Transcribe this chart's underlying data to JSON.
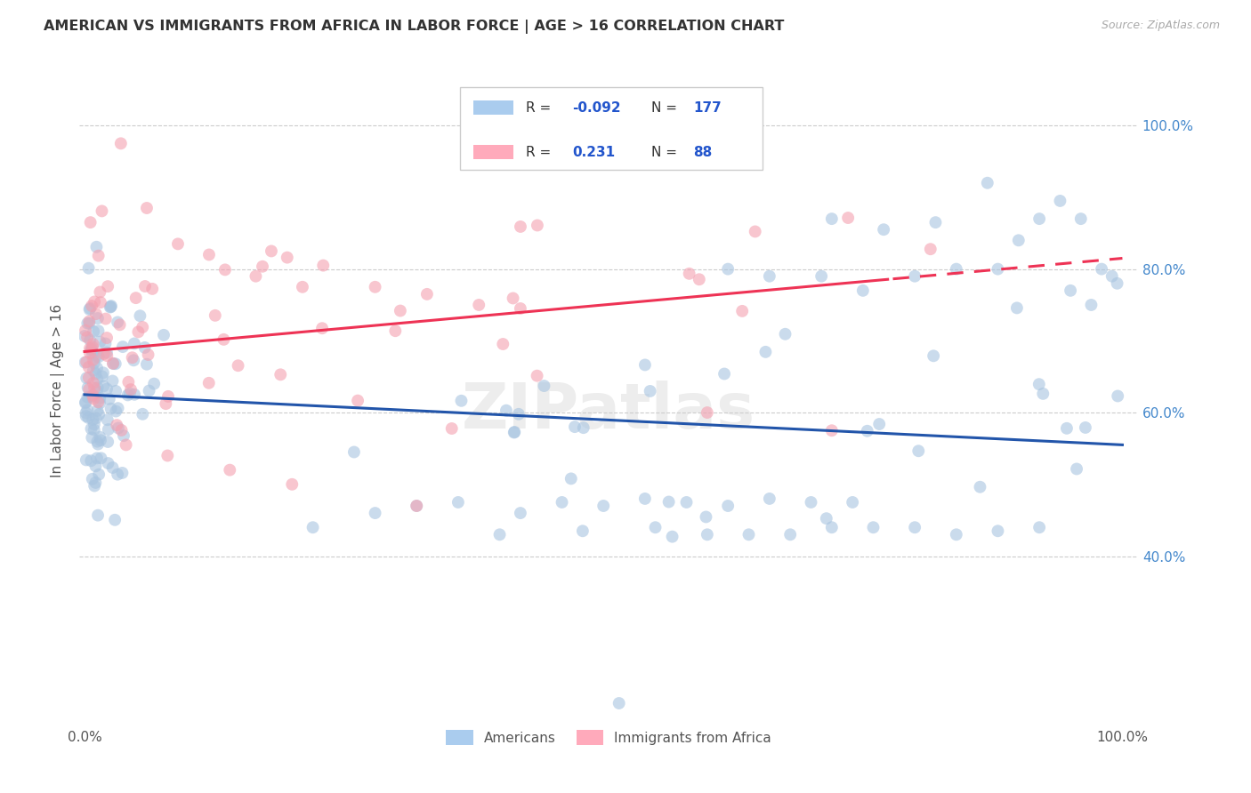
{
  "title": "AMERICAN VS IMMIGRANTS FROM AFRICA IN LABOR FORCE | AGE > 16 CORRELATION CHART",
  "source": "Source: ZipAtlas.com",
  "ylabel": "In Labor Force | Age > 16",
  "legend": {
    "blue_label": "Americans",
    "pink_label": "Immigrants from Africa",
    "blue_r": "-0.092",
    "blue_n": "177",
    "pink_r": "0.231",
    "pink_n": "88"
  },
  "blue_color": "#A8C4E0",
  "pink_color": "#F4A0B0",
  "blue_line_color": "#2255AA",
  "pink_line_color": "#EE3355",
  "watermark": "ZIPatlas",
  "ytick_labels": [
    "40.0%",
    "60.0%",
    "80.0%",
    "100.0%"
  ],
  "ytick_color": "#4488CC",
  "blue_scatter_alpha": 0.6,
  "pink_scatter_alpha": 0.6,
  "scatter_size": 100
}
